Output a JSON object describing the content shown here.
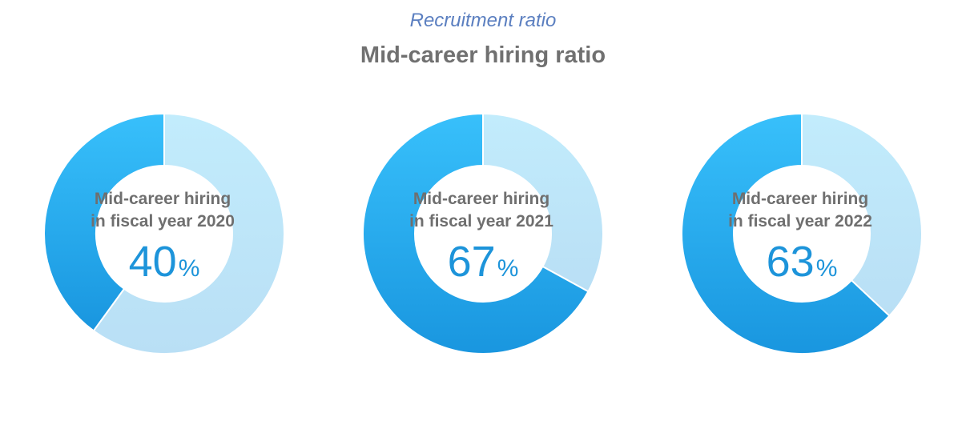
{
  "header": {
    "subtitle": "Recruitment ratio",
    "title": "Mid-career hiring ratio"
  },
  "colors": {
    "share": "#1e9be3",
    "remainder": "#bde6fa",
    "label_text": "#6f6f6f",
    "value_text": "#1d94da",
    "subtitle_text": "#5b7fc0"
  },
  "chart_data": {
    "type": "pie",
    "charts": [
      {
        "label_line1": "Mid-career hiring",
        "label_line2": "in fiscal year 2020",
        "value": 40,
        "unit": "%"
      },
      {
        "label_line1": "Mid-career hiring",
        "label_line2": "in fiscal year 2021",
        "value": 67,
        "unit": "%"
      },
      {
        "label_line1": "Mid-career hiring",
        "label_line2": "in fiscal year 2022",
        "value": 63,
        "unit": "%"
      }
    ]
  }
}
